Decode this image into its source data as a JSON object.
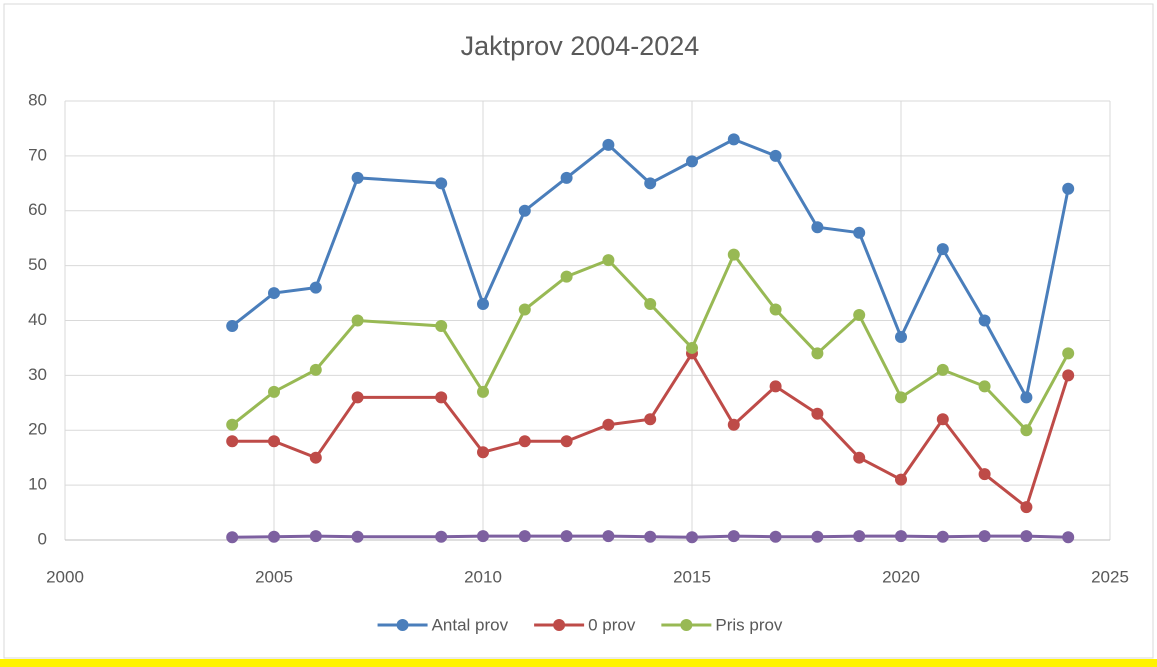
{
  "chart_data": {
    "type": "line",
    "title": "Jaktprov 2004-2024",
    "x": [
      2004,
      2005,
      2006,
      2007,
      2009,
      2010,
      2011,
      2012,
      2013,
      2014,
      2015,
      2016,
      2017,
      2018,
      2019,
      2020,
      2021,
      2022,
      2023,
      2024
    ],
    "series": [
      {
        "name": "Antal prov",
        "color": "#4a7ebb",
        "values": [
          39,
          45,
          46,
          66,
          65,
          43,
          60,
          66,
          72,
          65,
          69,
          73,
          70,
          57,
          56,
          37,
          53,
          40,
          26,
          64
        ]
      },
      {
        "name": "0 prov",
        "color": "#be4b48",
        "values": [
          18,
          18,
          15,
          26,
          26,
          16,
          18,
          18,
          21,
          22,
          34,
          21,
          28,
          23,
          15,
          11,
          22,
          12,
          6,
          30
        ]
      },
      {
        "name": "Pris prov",
        "color": "#98b954",
        "values": [
          21,
          27,
          31,
          40,
          39,
          27,
          42,
          48,
          51,
          43,
          35,
          52,
          42,
          34,
          41,
          26,
          31,
          28,
          20,
          34
        ]
      },
      {
        "color": "#7d60a0",
        "values": [
          0.5,
          0.6,
          0.7,
          0.6,
          0.6,
          0.7,
          0.7,
          0.7,
          0.7,
          0.6,
          0.5,
          0.7,
          0.6,
          0.6,
          0.7,
          0.7,
          0.6,
          0.7,
          0.7,
          0.5
        ]
      }
    ],
    "xlim": [
      2000,
      2025
    ],
    "xticks": [
      2000,
      2005,
      2010,
      2015,
      2020,
      2025
    ],
    "ylim": [
      0,
      80
    ],
    "yticks": [
      0,
      10,
      20,
      30,
      40,
      50,
      60,
      70,
      80
    ],
    "grid": true,
    "legend": "bottom"
  }
}
